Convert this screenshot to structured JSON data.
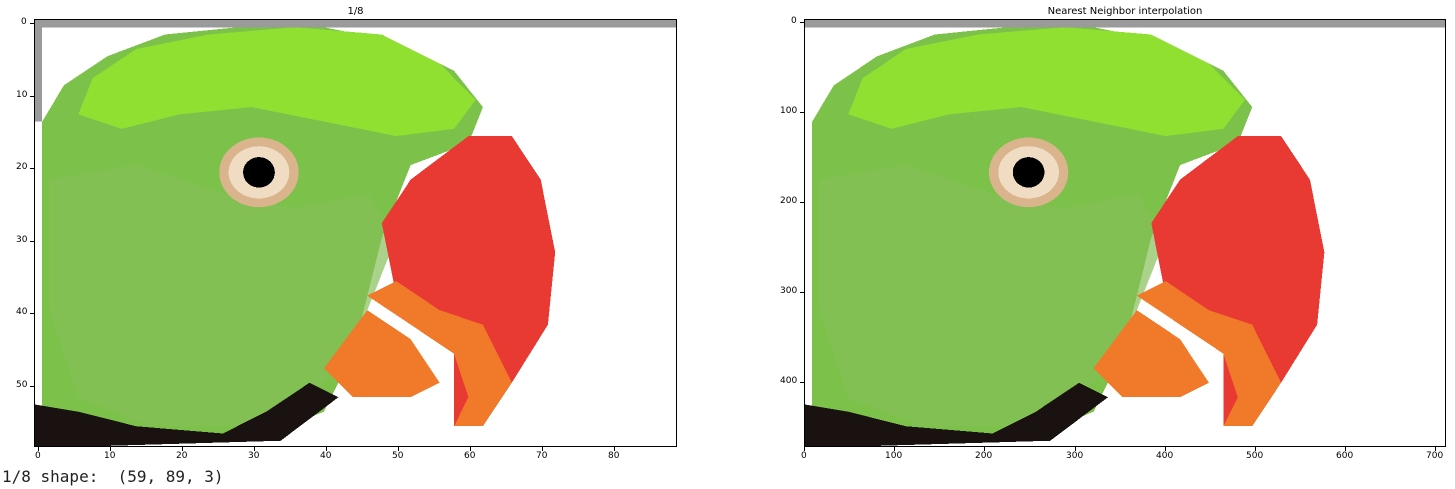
{
  "left_plot": {
    "title": "1/8",
    "x_ticks": [
      "0",
      "10",
      "20",
      "30",
      "40",
      "50",
      "60",
      "70",
      "80"
    ],
    "y_ticks": [
      "0",
      "10",
      "20",
      "30",
      "40",
      "50"
    ],
    "xlim": [
      0,
      89
    ],
    "ylim": [
      0,
      59
    ]
  },
  "right_plot": {
    "title": "Nearest Neighbor interpolation",
    "x_ticks": [
      "0",
      "100",
      "200",
      "300",
      "400",
      "500",
      "600",
      "700"
    ],
    "y_ticks": [
      "0",
      "100",
      "200",
      "300",
      "400"
    ],
    "xlim": [
      0,
      712
    ],
    "ylim": [
      0,
      472
    ]
  },
  "output": {
    "label": "1/8 shape:",
    "value": "(59, 89, 3)"
  },
  "colors": {
    "head_green": "#7cc24a",
    "crown_green": "#8fe030",
    "beak_red": "#e83a32",
    "beak_orange": "#f07a2a",
    "eye_ring": "#e8c8a0",
    "pupil": "#000000",
    "dark_lower": "#1a1210"
  }
}
